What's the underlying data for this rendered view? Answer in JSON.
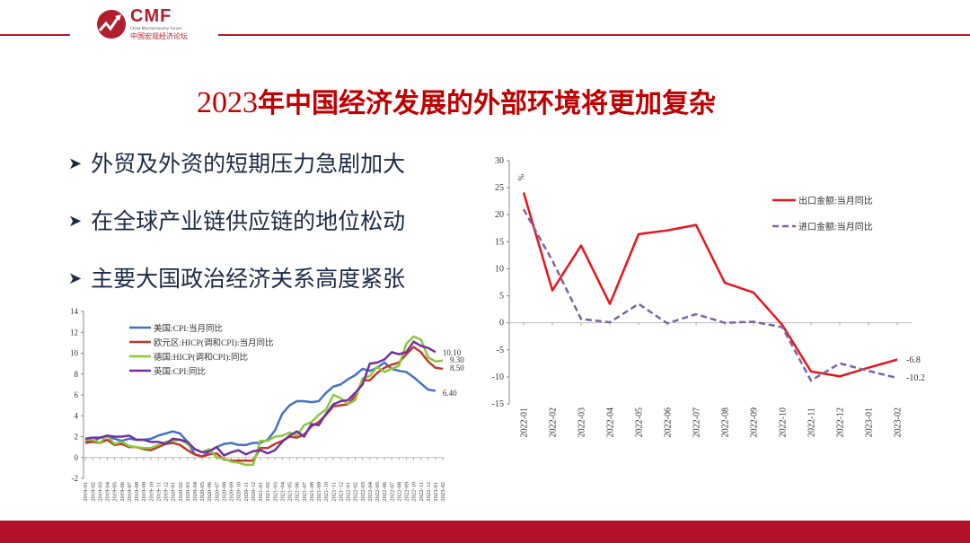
{
  "header": {
    "logo_text": "CMF",
    "logo_subtitle": "China Macroeconomy Forum",
    "logo_cn": "中国宏观经济论坛"
  },
  "title": {
    "year": "2023",
    "text": "年中国经济发展的外部环境将更加复杂"
  },
  "bullets": [
    {
      "label": "外贸及外资的短期压力急剧加大"
    },
    {
      "label": "在全球产业链供应链的地位松动"
    },
    {
      "label": "主要大国政治经济关系高度紧张"
    }
  ],
  "colors": {
    "accent": "#b01e2f",
    "footer": "#b3122b"
  },
  "chart_data": [
    {
      "type": "line",
      "title": "",
      "xlabel": "",
      "ylabel": "",
      "ylim": [
        -2,
        14
      ],
      "yticks": [
        -2,
        0,
        2,
        4,
        6,
        8,
        10,
        12,
        14
      ],
      "legend_position": "top-left",
      "x": [
        "2019-01",
        "2019-02",
        "2019-03",
        "2019-04",
        "2019-05",
        "2019-06",
        "2019-07",
        "2019-08",
        "2019-09",
        "2019-10",
        "2019-11",
        "2019-12",
        "2020-01",
        "2020-02",
        "2020-03",
        "2020-04",
        "2020-05",
        "2020-06",
        "2020-07",
        "2020-08",
        "2020-09",
        "2020-10",
        "2020-11",
        "2020-12",
        "2021-01",
        "2021-02",
        "2021-03",
        "2021-04",
        "2021-05",
        "2021-06",
        "2021-07",
        "2021-08",
        "2021-09",
        "2021-10",
        "2021-11",
        "2021-12",
        "2022-01",
        "2022-02",
        "2022-03",
        "2022-04",
        "2022-05",
        "2022-06",
        "2022-07",
        "2022-08",
        "2022-09",
        "2022-10",
        "2022-11",
        "2022-12",
        "2023-01",
        "2023-02"
      ],
      "series": [
        {
          "name": "美国:CPI:当月同比",
          "color": "#4472c4",
          "end_label": "6.40",
          "values": [
            1.6,
            1.5,
            1.9,
            2.0,
            1.8,
            1.6,
            1.8,
            1.7,
            1.7,
            1.8,
            2.1,
            2.3,
            2.5,
            2.3,
            1.5,
            0.3,
            0.1,
            0.6,
            1.0,
            1.3,
            1.4,
            1.2,
            1.2,
            1.4,
            1.4,
            1.7,
            2.6,
            4.2,
            5.0,
            5.4,
            5.4,
            5.3,
            5.4,
            6.2,
            6.8,
            7.0,
            7.5,
            7.9,
            8.5,
            8.3,
            8.6,
            9.1,
            8.5,
            8.3,
            8.2,
            7.7,
            7.1,
            6.5,
            6.4,
            null
          ]
        },
        {
          "name": "欧元区:HICP(调和CPI):当月同比",
          "color": "#c0392b",
          "end_label": "8.50",
          "values": [
            1.4,
            1.5,
            1.4,
            1.7,
            1.2,
            1.3,
            1.0,
            1.0,
            0.8,
            0.7,
            1.0,
            1.3,
            1.4,
            1.2,
            0.7,
            0.3,
            0.1,
            0.3,
            0.4,
            -0.2,
            -0.3,
            -0.3,
            -0.3,
            -0.3,
            0.9,
            0.9,
            1.3,
            1.6,
            2.0,
            1.9,
            2.2,
            3.0,
            3.4,
            4.1,
            4.9,
            5.0,
            5.1,
            5.9,
            7.4,
            7.4,
            8.1,
            8.6,
            8.9,
            9.1,
            9.9,
            10.6,
            10.1,
            9.2,
            8.6,
            8.5
          ]
        },
        {
          "name": "德国:HICP(调和CPI):同比",
          "color": "#8dc63f",
          "end_label": "9.30",
          "values": [
            1.7,
            1.7,
            1.4,
            2.1,
            1.3,
            1.5,
            1.1,
            1.0,
            0.9,
            0.9,
            1.2,
            1.5,
            1.6,
            1.7,
            1.3,
            0.8,
            0.5,
            0.8,
            0.0,
            -0.1,
            -0.4,
            -0.5,
            -0.7,
            -0.7,
            1.6,
            1.6,
            2.0,
            2.1,
            2.4,
            2.1,
            3.1,
            3.4,
            4.1,
            4.6,
            6.0,
            5.7,
            5.1,
            5.5,
            7.6,
            7.8,
            8.7,
            8.2,
            8.5,
            8.8,
            10.9,
            11.6,
            11.3,
            9.6,
            9.2,
            9.3
          ]
        },
        {
          "name": "英国:CPI:同比",
          "color": "#7030a0",
          "end_label": "10.10",
          "values": [
            1.8,
            1.9,
            1.9,
            2.1,
            2.0,
            2.0,
            2.1,
            1.7,
            1.7,
            1.5,
            1.5,
            1.3,
            1.8,
            1.7,
            1.5,
            0.8,
            0.5,
            0.6,
            1.0,
            0.2,
            0.5,
            0.7,
            0.3,
            0.6,
            0.7,
            0.4,
            0.7,
            1.5,
            2.1,
            2.5,
            2.0,
            3.2,
            3.1,
            4.2,
            5.1,
            5.4,
            5.5,
            6.2,
            7.0,
            9.0,
            9.1,
            9.4,
            10.1,
            9.9,
            10.1,
            11.1,
            10.7,
            10.5,
            10.1,
            null
          ]
        }
      ]
    },
    {
      "type": "line",
      "title": "",
      "xlabel": "",
      "ylabel": "%",
      "ylim": [
        -15,
        30
      ],
      "yticks": [
        -15,
        -10,
        -5,
        0,
        5,
        10,
        15,
        20,
        25,
        30
      ],
      "legend_position": "top-right",
      "x": [
        "2022-01",
        "2022-02",
        "2022-03",
        "2022-04",
        "2022-05",
        "2022-06",
        "2022-07",
        "2022-08",
        "2022-09",
        "2022-10",
        "2022-11",
        "2022-12",
        "2023-01",
        "2023-02"
      ],
      "series": [
        {
          "name": "出口金额:当月同比",
          "color": "#e8141c",
          "dash": false,
          "end_label": "-6.8",
          "values": [
            24.1,
            6.0,
            14.3,
            3.5,
            16.4,
            17.1,
            18.1,
            7.4,
            5.6,
            -0.4,
            -9.0,
            -9.9,
            -8.3,
            -6.8
          ]
        },
        {
          "name": "进口金额:当月同比",
          "color": "#7a64a6",
          "dash": true,
          "end_label": "-10.2",
          "values": [
            21.0,
            11.5,
            0.7,
            0.1,
            3.5,
            -0.1,
            1.6,
            0.0,
            0.2,
            -0.8,
            -10.7,
            -7.5,
            -8.9,
            -10.2
          ]
        }
      ]
    }
  ]
}
